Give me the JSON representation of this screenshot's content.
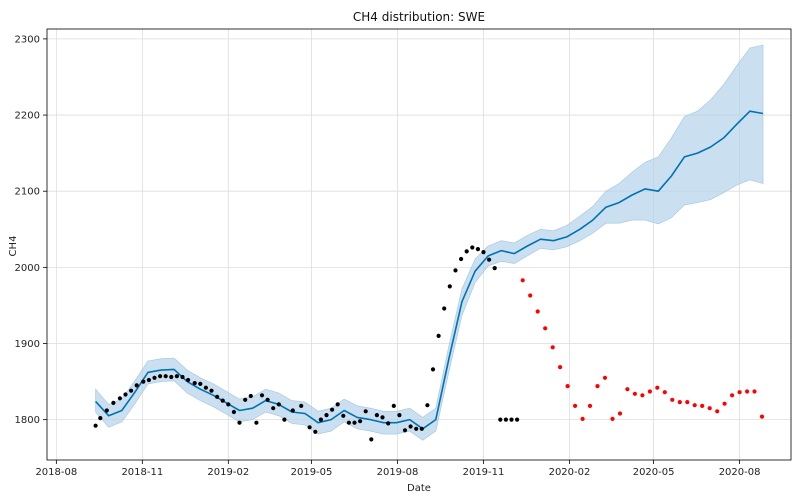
{
  "chart_data": {
    "type": "scatter",
    "title": "CH4 distribution: SWE",
    "xlabel": "Date",
    "ylabel": "CH4",
    "x_ticks": [
      "2018-08",
      "2018-11",
      "2019-02",
      "2019-05",
      "2019-08",
      "2019-11",
      "2020-02",
      "2020-05",
      "2020-08"
    ],
    "y_ticks": [
      1800,
      1900,
      2000,
      2100,
      2200,
      2300
    ],
    "xlim": [
      "2018-07-22",
      "2020-09-25"
    ],
    "ylim": [
      1747,
      2313
    ],
    "grid": true,
    "colors": {
      "history": "#000000",
      "forecast_actual": "#ff0000",
      "trend": "#0072b2",
      "interval": "#b3d3ea",
      "grid": "#dddddd"
    },
    "series": [
      {
        "kind": "observed",
        "x": [
          "2018-09-12",
          "2018-09-17",
          "2018-09-24",
          "2018-10-01",
          "2018-10-08",
          "2018-10-14",
          "2018-10-20",
          "2018-10-26",
          "2018-11-02",
          "2018-11-08",
          "2018-11-14",
          "2018-11-20",
          "2018-11-26",
          "2018-12-02",
          "2018-12-08",
          "2018-12-14",
          "2018-12-20",
          "2018-12-27",
          "2019-01-02",
          "2019-01-08",
          "2019-01-14",
          "2019-01-20",
          "2019-01-26",
          "2019-02-01",
          "2019-02-07",
          "2019-02-13",
          "2019-02-19",
          "2019-02-25",
          "2019-03-03",
          "2019-03-09",
          "2019-03-15",
          "2019-03-21",
          "2019-03-27",
          "2019-04-02",
          "2019-04-11",
          "2019-04-20",
          "2019-04-29",
          "2019-05-05",
          "2019-05-11",
          "2019-05-17",
          "2019-05-23",
          "2019-05-29",
          "2019-06-04",
          "2019-06-10",
          "2019-06-16",
          "2019-06-22",
          "2019-06-28",
          "2019-07-04",
          "2019-07-10",
          "2019-07-16",
          "2019-07-22",
          "2019-07-28",
          "2019-08-03",
          "2019-08-09",
          "2019-08-15",
          "2019-08-21",
          "2019-08-27",
          "2019-09-02",
          "2019-09-08",
          "2019-09-14",
          "2019-09-20",
          "2019-09-26",
          "2019-10-02",
          "2019-10-08",
          "2019-10-14",
          "2019-10-20",
          "2019-10-26",
          "2019-11-01",
          "2019-11-07",
          "2019-11-13",
          "2019-11-19",
          "2019-11-25",
          "2019-12-01",
          "2019-12-07"
        ],
        "y": [
          1792,
          1802,
          1812,
          1822,
          1828,
          1833,
          1838,
          1845,
          1850,
          1852,
          1855,
          1857,
          1857,
          1856,
          1857,
          1856,
          1852,
          1848,
          1847,
          1842,
          1838,
          1830,
          1825,
          1820,
          1810,
          1796,
          1826,
          1831,
          1796,
          1832,
          1826,
          1815,
          1820,
          1800,
          1812,
          1818,
          1790,
          1784,
          1800,
          1806,
          1813,
          1820,
          1805,
          1796,
          1796,
          1798,
          1811,
          1774,
          1806,
          1803,
          1795,
          1818,
          1806,
          1786,
          1791,
          1788,
          1788,
          1819,
          1866,
          1910,
          1946,
          1975,
          1996,
          2011,
          2021,
          2026,
          2024,
          2020,
          2010,
          1999,
          1800,
          1800,
          1800,
          1800
        ]
      },
      {
        "kind": "forecast_actual",
        "x": [
          "2019-12-13",
          "2019-12-21",
          "2019-12-29",
          "2020-01-06",
          "2020-01-14",
          "2020-01-22",
          "2020-01-30",
          "2020-02-07",
          "2020-02-15",
          "2020-02-23",
          "2020-03-02",
          "2020-03-10",
          "2020-03-18",
          "2020-03-26",
          "2020-04-03",
          "2020-04-11",
          "2020-04-19",
          "2020-04-27",
          "2020-05-05",
          "2020-05-13",
          "2020-05-21",
          "2020-05-29",
          "2020-06-06",
          "2020-06-14",
          "2020-06-22",
          "2020-06-30",
          "2020-07-08",
          "2020-07-16",
          "2020-07-24",
          "2020-08-01",
          "2020-08-09",
          "2020-08-17",
          "2020-08-25"
        ],
        "y": [
          1983,
          1963,
          1942,
          1920,
          1895,
          1869,
          1844,
          1818,
          1801,
          1818,
          1844,
          1855,
          1801,
          1808,
          1840,
          1834,
          1832,
          1837,
          1842,
          1836,
          1826,
          1823,
          1823,
          1819,
          1818,
          1815,
          1811,
          1821,
          1832,
          1836,
          1837,
          1837,
          1804
        ]
      }
    ],
    "forecast": {
      "x": [
        "2018-09-12",
        "2018-09-26",
        "2018-10-10",
        "2018-10-24",
        "2018-11-07",
        "2018-11-21",
        "2018-12-05",
        "2018-12-19",
        "2019-01-02",
        "2019-01-16",
        "2019-01-30",
        "2019-02-13",
        "2019-02-27",
        "2019-03-13",
        "2019-03-27",
        "2019-04-10",
        "2019-04-24",
        "2019-05-08",
        "2019-05-22",
        "2019-06-05",
        "2019-06-19",
        "2019-07-03",
        "2019-07-17",
        "2019-07-31",
        "2019-08-14",
        "2019-08-28",
        "2019-09-11",
        "2019-09-25",
        "2019-10-09",
        "2019-10-23",
        "2019-11-06",
        "2019-11-20",
        "2019-12-04",
        "2019-12-18",
        "2020-01-01",
        "2020-01-15",
        "2020-01-29",
        "2020-02-12",
        "2020-02-26",
        "2020-03-11",
        "2020-03-25",
        "2020-04-08",
        "2020-04-22",
        "2020-05-06",
        "2020-05-20",
        "2020-06-03",
        "2020-06-17",
        "2020-07-01",
        "2020-07-15",
        "2020-07-29",
        "2020-08-12",
        "2020-08-26"
      ],
      "yhat": [
        1824,
        1805,
        1812,
        1836,
        1862,
        1865,
        1866,
        1850,
        1840,
        1832,
        1822,
        1812,
        1815,
        1825,
        1820,
        1810,
        1808,
        1796,
        1800,
        1812,
        1803,
        1800,
        1796,
        1796,
        1800,
        1788,
        1800,
        1880,
        1955,
        1995,
        2015,
        2022,
        2018,
        2028,
        2037,
        2035,
        2040,
        2050,
        2062,
        2079,
        2085,
        2095,
        2103,
        2100,
        2120,
        2145,
        2150,
        2158,
        2170,
        2188,
        2205,
        2202
      ],
      "yhat_lower": [
        1810,
        1790,
        1797,
        1821,
        1847,
        1850,
        1851,
        1835,
        1825,
        1817,
        1807,
        1797,
        1800,
        1810,
        1805,
        1795,
        1793,
        1781,
        1785,
        1797,
        1788,
        1785,
        1781,
        1781,
        1785,
        1773,
        1785,
        1863,
        1937,
        1980,
        2002,
        2008,
        2005,
        2015,
        2025,
        2023,
        2027,
        2035,
        2045,
        2058,
        2058,
        2062,
        2062,
        2057,
        2065,
        2082,
        2085,
        2089,
        2098,
        2108,
        2115,
        2110
      ],
      "yhat_upper": [
        1840,
        1820,
        1827,
        1851,
        1877,
        1880,
        1881,
        1865,
        1855,
        1847,
        1837,
        1827,
        1830,
        1840,
        1835,
        1825,
        1823,
        1811,
        1815,
        1827,
        1818,
        1815,
        1811,
        1811,
        1815,
        1803,
        1815,
        1897,
        1972,
        2011,
        2028,
        2035,
        2032,
        2042,
        2050,
        2048,
        2055,
        2067,
        2080,
        2100,
        2110,
        2125,
        2138,
        2145,
        2170,
        2198,
        2205,
        2220,
        2240,
        2265,
        2288,
        2292
      ]
    }
  }
}
